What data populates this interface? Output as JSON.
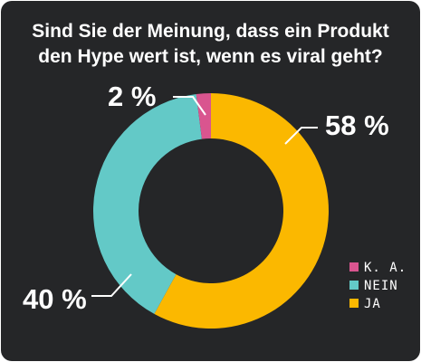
{
  "chart_data": {
    "type": "pie",
    "title_lines": [
      "Sind Sie der Meinung, dass ein Produkt",
      "den Hype wert ist, wenn es viral geht?"
    ],
    "donut": true,
    "slices": [
      {
        "label": "K. A.",
        "value": 2,
        "display": "2 %",
        "color": "#d9558f"
      },
      {
        "label": "NEIN",
        "value": 40,
        "display": "40 %",
        "color": "#63c9c7"
      },
      {
        "label": "JA",
        "value": 58,
        "display": "58 %",
        "color": "#fbb800"
      }
    ],
    "legend_order": [
      "K. A.",
      "NEIN",
      "JA"
    ],
    "legend_position": "bottom-right"
  },
  "colors": {
    "background": "#252628",
    "text": "#ffffff"
  }
}
